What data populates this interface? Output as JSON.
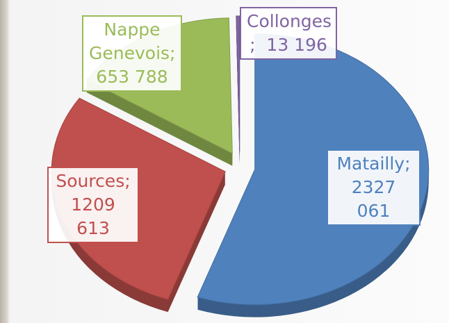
{
  "chart_data": {
    "type": "pie",
    "categories": [
      "Matailly",
      "Sources",
      "Nappe Genevois",
      "Collonges"
    ],
    "values": [
      2327061,
      1209613,
      653788,
      13196
    ],
    "value_labels": [
      "2327 061",
      "1209 613",
      "653 788",
      "13 196"
    ],
    "label_separator": ";",
    "colors": [
      "#4f81bd",
      "#c0504d",
      "#9bbb59",
      "#8064a2"
    ],
    "exploded": true,
    "three_d": true
  }
}
